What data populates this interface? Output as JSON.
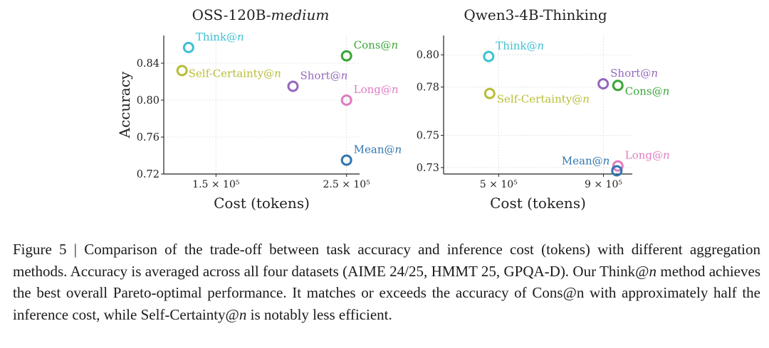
{
  "chart_data": [
    {
      "type": "scatter",
      "title": "OSS-120B-medium",
      "title_plain": "OSS-120B-",
      "title_italic": "medium",
      "xlabel": "Cost (tokens)",
      "ylabel": "Accuracy",
      "xlim": [
        110000,
        260000
      ],
      "ylim": [
        0.72,
        0.87
      ],
      "xticks": [
        150000,
        250000
      ],
      "xtick_labels": [
        "1.5 × 10⁵",
        "2.5 × 10⁵"
      ],
      "yticks": [
        0.72,
        0.76,
        0.8,
        0.84
      ],
      "ytick_labels": [
        "0.72",
        "0.76",
        "0.80",
        "0.84"
      ],
      "grid": true,
      "points": [
        {
          "label": "Think@n",
          "label_plain": "Think@",
          "x": 129000,
          "y": 0.857,
          "color": "#3ec1d3",
          "label_pos": "upper-right"
        },
        {
          "label": "Cons@n",
          "label_plain": "Cons@",
          "x": 250000,
          "y": 0.848,
          "color": "#3aa538",
          "label_pos": "upper-right"
        },
        {
          "label": "Self-Certainty@n",
          "label_plain": "Self-Certainty@",
          "x": 124000,
          "y": 0.832,
          "color": "#b8bd35",
          "label_pos": "right"
        },
        {
          "label": "Short@n",
          "label_plain": "Short@",
          "x": 209000,
          "y": 0.815,
          "color": "#9567bd",
          "label_pos": "upper-right"
        },
        {
          "label": "Long@n",
          "label_plain": "Long@",
          "x": 250000,
          "y": 0.8,
          "color": "#e07bc2",
          "label_pos": "upper-right"
        },
        {
          "label": "Mean@n",
          "label_plain": "Mean@",
          "x": 250000,
          "y": 0.735,
          "color": "#2f76b0",
          "label_pos": "upper-right"
        }
      ]
    },
    {
      "type": "scatter",
      "title": "Qwen3-4B-Thinking",
      "title_plain": "Qwen3-4B-Thinking",
      "title_italic": "",
      "xlabel": "Cost (tokens)",
      "ylabel": "",
      "xlim": [
        290000,
        1010000
      ],
      "ylim": [
        0.726,
        0.812
      ],
      "xticks": [
        500000,
        900000
      ],
      "xtick_labels": [
        "5 × 10⁵",
        "9 × 10⁵"
      ],
      "yticks": [
        0.73,
        0.75,
        0.78,
        0.8
      ],
      "ytick_labels": [
        "0.73",
        "0.75",
        "0.78",
        "0.80"
      ],
      "grid": true,
      "points": [
        {
          "label": "Think@n",
          "label_plain": "Think@",
          "x": 462000,
          "y": 0.799,
          "color": "#3ec1d3",
          "label_pos": "upper-right"
        },
        {
          "label": "Self-Certainty@n",
          "label_plain": "Self-Certainty@",
          "x": 466000,
          "y": 0.776,
          "color": "#b8bd35",
          "label_pos": "lower-right"
        },
        {
          "label": "Short@n",
          "label_plain": "Short@",
          "x": 899000,
          "y": 0.782,
          "color": "#9567bd",
          "label_pos": "upper-right"
        },
        {
          "label": "Cons@n",
          "label_plain": "Cons@",
          "x": 955000,
          "y": 0.781,
          "color": "#3aa538",
          "label_pos": "lower-right"
        },
        {
          "label": "Long@n",
          "label_plain": "Long@",
          "x": 955000,
          "y": 0.731,
          "color": "#e07bc2",
          "label_pos": "upper-right"
        },
        {
          "label": "Mean@n",
          "label_plain": "Mean@",
          "x": 951000,
          "y": 0.728,
          "color": "#2f76b0",
          "label_pos": "upper-left"
        }
      ]
    }
  ],
  "caption": {
    "label": "Figure 5 | ",
    "parts": [
      "Comparison of the trade-off between task accuracy and inference cost (tokens) with different aggregation methods. Accuracy is averaged across all four datasets (AIME 24/25, HMMT 25, GPQA-D). Our Think@",
      "n",
      " method achieves the best overall Pareto-optimal performance. It matches or exceeds the accuracy of Cons@n with approximately half the inference cost, while Self-Certainty@",
      "n",
      " is notably less efficient."
    ]
  }
}
